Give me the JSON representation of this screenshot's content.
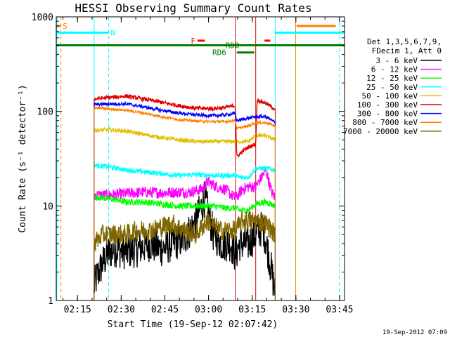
{
  "chart_data": {
    "type": "line",
    "title": "HESSI Observing Summary Count Rates",
    "xlabel": "Start Time (19-Sep-12 02:07:42)",
    "ylabel": "Count Rate (s⁻¹ detector⁻¹)",
    "y_scale": "log",
    "ylim": [
      1,
      1000
    ],
    "xlim_minutes_after_start": [
      0,
      99
    ],
    "x_tick_labels": [
      "02:15",
      "02:30",
      "02:45",
      "03:00",
      "03:15",
      "03:30",
      "03:45"
    ],
    "x_tick_minutes": [
      7.3,
      22.3,
      37.3,
      52.3,
      67.3,
      82.3,
      97.3
    ],
    "y_tick_labels": [
      "1",
      "10",
      "100",
      "1000"
    ],
    "y_tick_values": [
      1,
      10,
      100,
      1000
    ],
    "legend": {
      "placement": "right",
      "header": [
        "Det 1,3,5,6,7,9,",
        "FDecim 1, Att 0"
      ],
      "entries": [
        {
          "label": "3 - 6 keV",
          "color": "#000000"
        },
        {
          "label": "6 - 12 keV",
          "color": "#ff00ff"
        },
        {
          "label": "12 - 25 keV",
          "color": "#00ff00"
        },
        {
          "label": "25 - 50 keV",
          "color": "#00ffff"
        },
        {
          "label": "50 - 100 keV",
          "color": "#e0c000"
        },
        {
          "label": "100 - 300 keV",
          "color": "#e00000"
        },
        {
          "label": "300 - 800 keV",
          "color": "#0000ff"
        },
        {
          "label": "800 - 7000 keV",
          "color": "#ff8000"
        },
        {
          "label": "7000 - 20000 keV",
          "color": "#806600"
        }
      ]
    },
    "flags": [
      {
        "label": "S",
        "color": "#ff8000",
        "tick_minute": 1.6,
        "line_from": 0,
        "line_to": 1.6,
        "level": 800,
        "label_minute": 3.0
      },
      {
        "label": "N",
        "color": "#00ffff",
        "tick_minute": 18.0,
        "line_from": 0,
        "line_to": 18.0,
        "level": 680,
        "label_minute": 19.5
      },
      {
        "label": "F",
        "color": "#ff0000",
        "tick_minute": 48.5,
        "line_from": 48.5,
        "line_to": 51.0,
        "level": 560,
        "label_minute": 47.0
      },
      {
        "label": "RD0",
        "color": "#008000",
        "tick_minute": 0,
        "line_from": 0,
        "line_to": 99,
        "level": 500,
        "label_minute": 60.5
      },
      {
        "label": "RD6",
        "color": "#008000",
        "tick_minute": 62,
        "line_from": 62,
        "line_to": 68,
        "level": 420,
        "label_minute": 56.0
      }
    ],
    "extra_flag_segments": [
      {
        "color": "#ff0000",
        "from": 71.5,
        "to": 73.5,
        "level": 560
      },
      {
        "color": "#ff8000",
        "from": 82.5,
        "to": 96,
        "level": 800
      },
      {
        "color": "#00ffff",
        "from": 75,
        "to": 99,
        "level": 680
      }
    ],
    "vertical_markers": [
      {
        "minute": 0.2,
        "color": "#00ffff",
        "style": "solid"
      },
      {
        "minute": 1.6,
        "color": "#ff8000",
        "style": "dashed"
      },
      {
        "minute": 18.0,
        "color": "#00ffff",
        "style": "dashed"
      },
      {
        "minute": 13.0,
        "color": "#00ffff",
        "style": "solid"
      },
      {
        "minute": 61.5,
        "color": "#e00000",
        "style": "solid"
      },
      {
        "minute": 68.5,
        "color": "#e00000",
        "style": "solid"
      },
      {
        "minute": 75.2,
        "color": "#00ffff",
        "style": "solid"
      },
      {
        "minute": 82.2,
        "color": "#ff8000",
        "style": "solid"
      },
      {
        "minute": 97.2,
        "color": "#00ffff",
        "style": "dashed"
      }
    ],
    "series": [
      {
        "name": "3 - 6 keV",
        "color": "#000000",
        "noise": 0.45,
        "x": [
          13.0,
          14,
          16,
          18,
          20,
          24,
          28,
          32,
          36,
          40,
          44,
          48,
          51,
          54,
          57,
          60,
          61.5,
          63,
          66,
          68.5,
          71,
          73,
          75.2
        ],
        "y": [
          1.4,
          1.8,
          2.5,
          3.2,
          3.5,
          3.3,
          3.5,
          4.0,
          3.5,
          4.0,
          4.5,
          7.0,
          12.0,
          5.0,
          4.0,
          4.0,
          3.0,
          4.0,
          4.0,
          5.0,
          6.0,
          3.0,
          1.2
        ]
      },
      {
        "name": "6 - 12 keV",
        "color": "#ff00ff",
        "noise": 0.14,
        "x": [
          13.0,
          18,
          24,
          30,
          36,
          42,
          46,
          50,
          52,
          55,
          58,
          61.5,
          64,
          66,
          68.5,
          70,
          72,
          74,
          75.2
        ],
        "y": [
          13.0,
          13.0,
          13.5,
          14.0,
          13.8,
          14.0,
          14.0,
          15.0,
          18.0,
          16.0,
          15.0,
          12.0,
          15.0,
          16.0,
          16.0,
          19.0,
          24.0,
          14.0,
          12.0
        ]
      },
      {
        "name": "12 - 25 keV",
        "color": "#00ff00",
        "noise": 0.08,
        "x": [
          13.0,
          18,
          24,
          30,
          36,
          42,
          48,
          54,
          58,
          61.5,
          63,
          66,
          68.5,
          72,
          75.2
        ],
        "y": [
          12.5,
          12.0,
          11.0,
          11.0,
          10.5,
          10.0,
          10.0,
          10.0,
          9.5,
          9.5,
          9.0,
          9.0,
          10.5,
          11.0,
          10.0
        ]
      },
      {
        "name": "25 - 50 keV",
        "color": "#00ffff",
        "noise": 0.06,
        "x": [
          13.0,
          18,
          24,
          30,
          36,
          42,
          48,
          54,
          58,
          61.5,
          63,
          66,
          68.5,
          72,
          75.2
        ],
        "y": [
          27.0,
          26.0,
          24.0,
          23.0,
          22.0,
          21.0,
          21.5,
          21.0,
          21.0,
          21.0,
          20.0,
          20.0,
          25.0,
          25.0,
          24.0
        ]
      },
      {
        "name": "50 - 100 keV",
        "color": "#e0c000",
        "noise": 0.05,
        "x": [
          13.0,
          18,
          24,
          30,
          36,
          42,
          48,
          54,
          58,
          61.5,
          63,
          66,
          68.5,
          72,
          75.2
        ],
        "y": [
          63.0,
          64.0,
          62.0,
          57.0,
          53.0,
          50.0,
          48.0,
          48.0,
          48.0,
          48.0,
          48.0,
          48.0,
          56.0,
          55.0,
          50.0
        ]
      },
      {
        "name": "100 - 300 keV",
        "color": "#e00000",
        "noise": 0.05,
        "x": [
          13.0,
          18,
          24,
          30,
          36,
          42,
          48,
          54,
          58,
          61.5,
          62,
          64,
          66,
          68.5,
          69,
          72,
          75.2
        ],
        "y": [
          135.0,
          140.0,
          145.0,
          135.0,
          125.0,
          115.0,
          108.0,
          107.0,
          110.0,
          115.0,
          33.0,
          38.0,
          42.0,
          45.0,
          132.0,
          122.0,
          105.0
        ]
      },
      {
        "name": "300 - 800 keV",
        "color": "#0000ff",
        "noise": 0.04,
        "x": [
          13.0,
          18,
          24,
          30,
          36,
          42,
          48,
          54,
          58,
          61.5,
          62,
          66,
          68.5,
          72,
          75.2
        ],
        "y": [
          118.0,
          120.0,
          120.0,
          112.0,
          103.0,
          96.0,
          92.0,
          90.0,
          92.0,
          95.0,
          80.0,
          85.0,
          88.0,
          88.0,
          76.0
        ]
      },
      {
        "name": "800 - 7000 keV",
        "color": "#ff8000",
        "noise": 0.03,
        "x": [
          13.0,
          18,
          24,
          30,
          36,
          42,
          48,
          54,
          58,
          61.5,
          62,
          66,
          68.5,
          72,
          75.2
        ],
        "y": [
          110.0,
          106.0,
          103.0,
          96.0,
          88.0,
          82.0,
          79.0,
          78.0,
          78.0,
          80.0,
          66.0,
          70.0,
          76.0,
          76.0,
          70.0
        ]
      },
      {
        "name": "7000 - 20000 keV",
        "color": "#806600",
        "noise": 0.25,
        "x": [
          13.0,
          16,
          20,
          24,
          28,
          32,
          36,
          40,
          44,
          48,
          52,
          56,
          61.5,
          64,
          66,
          68.5,
          72,
          75.2
        ],
        "y": [
          4.0,
          5.0,
          5.0,
          5.0,
          5.5,
          5.5,
          6.0,
          6.5,
          5.5,
          5.0,
          7.0,
          5.5,
          5.5,
          7.0,
          7.0,
          7.0,
          6.5,
          5.0
        ]
      }
    ]
  },
  "footer": {
    "timestamp": "19-Sep-2012 07:09"
  }
}
